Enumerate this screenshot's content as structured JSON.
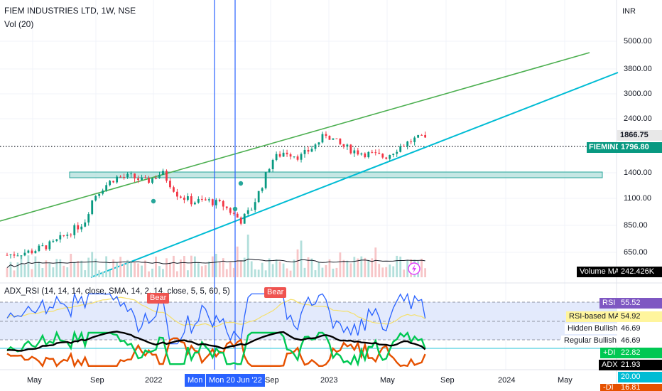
{
  "header": {
    "title": "FIEM INDUSTRIES LTD, 1W, NSE",
    "volume_label": "Vol (20)",
    "indicator_label": "ADX_RSI (14, 14, 14, close, SMA, 14, 2, 14, close, 5, 5, 60, 5)"
  },
  "currency": "INR",
  "price_axis": {
    "ticks": [
      "5000.00",
      "3800.00",
      "3000.00",
      "2400.00",
      "1866.75",
      "1400.00",
      "1100.00",
      "850.00",
      "650.00"
    ]
  },
  "symbol_tag": {
    "name": "FIEMIND",
    "price": "1796.80"
  },
  "indicator_values": {
    "volume_ma_label": "Volume MA",
    "volume_ma": "242.426K",
    "rsi_label": "RSI",
    "rsi": "55.52",
    "rsi_ma_label": "RSI-based MA",
    "rsi_ma": "54.92",
    "hidden_bullish_label": "Hidden Bullish",
    "hidden_bullish": "46.69",
    "regular_bullish_label": "Regular Bullish",
    "regular_bullish": "46.69",
    "plus_di_label": "+DI",
    "plus_di": "22.82",
    "adx_label": "ADX",
    "adx": "21.93",
    "level_20": "20.00",
    "minus_di_label": "-DI",
    "minus_di": "16.81"
  },
  "bear_labels": [
    "Bear",
    "Bear"
  ],
  "time_axis": {
    "ticks": [
      "May",
      "Sep",
      "2022",
      "Sep",
      "2023",
      "May",
      "Sep",
      "2024",
      "May"
    ],
    "highlight_1": "Mon",
    "highlight_2": "Mon 20 Jun '22"
  },
  "colors": {
    "bull": "#089981",
    "bear": "#f23645",
    "upper_trendline": "#4caf50",
    "lower_trendline": "#00bcd4",
    "vertical_lines": "#2962ff",
    "zone": "#b2dfdb",
    "rsi": "#2962ff",
    "adx": "#000000",
    "plus_di": "#00c853",
    "minus_di": "#e65100"
  },
  "chart_data": {
    "type": "candlestick",
    "title": "FIEM INDUSTRIES LTD, 1W, NSE",
    "y_scale": "log",
    "ylim": [
      480,
      6400
    ],
    "x_range": [
      "2021-03",
      "2024-07"
    ],
    "weekly_close_path": [
      {
        "x": "2021-03-15",
        "close": 620
      },
      {
        "x": "2021-05-01",
        "close": 640
      },
      {
        "x": "2021-06-15",
        "close": 690
      },
      {
        "x": "2021-07-15",
        "close": 760
      },
      {
        "x": "2021-08-15",
        "close": 840
      },
      {
        "x": "2021-09-01",
        "close": 1050
      },
      {
        "x": "2021-09-20",
        "close": 1150
      },
      {
        "x": "2021-10-15",
        "close": 1260
      },
      {
        "x": "2021-11-15",
        "close": 1270
      },
      {
        "x": "2021-12-15",
        "close": 1210
      },
      {
        "x": "2022-01-15",
        "close": 1320
      },
      {
        "x": "2022-02-15",
        "close": 1080
      },
      {
        "x": "2022-03-15",
        "close": 1010
      },
      {
        "x": "2022-04-15",
        "close": 1020
      },
      {
        "x": "2022-05-15",
        "close": 980
      },
      {
        "x": "2022-06-20",
        "close": 850
      },
      {
        "x": "2022-07-10",
        "close": 940
      },
      {
        "x": "2022-08-01",
        "close": 1180
      },
      {
        "x": "2022-08-20",
        "close": 1480
      },
      {
        "x": "2022-09-15",
        "close": 1600
      },
      {
        "x": "2022-10-15",
        "close": 1520
      },
      {
        "x": "2022-11-15",
        "close": 1700
      },
      {
        "x": "2022-12-05",
        "close": 1880
      },
      {
        "x": "2023-01-01",
        "close": 1700
      },
      {
        "x": "2023-02-01",
        "close": 1600
      },
      {
        "x": "2023-03-01",
        "close": 1560
      },
      {
        "x": "2023-04-01",
        "close": 1520
      },
      {
        "x": "2023-05-01",
        "close": 1680
      },
      {
        "x": "2023-06-01",
        "close": 1800
      },
      {
        "x": "2023-06-20",
        "close": 1796.8
      }
    ],
    "horizontal_levels": [
      1866.75
    ],
    "zone": {
      "from": 1310,
      "to": 1390,
      "x_start": "2021-03",
      "x_end": "2024-07"
    },
    "trendlines": [
      {
        "name": "upper",
        "from": {
          "x": "2021-03-01",
          "y": 870
        },
        "to": {
          "x": "2024-06-01",
          "y": 4300
        }
      },
      {
        "name": "lower",
        "from": {
          "x": "2021-09-01",
          "y": 560
        },
        "to": {
          "x": "2024-08-01",
          "y": 3300
        }
      }
    ],
    "vertical_markers": [
      "2022-05-23",
      "2022-06-20"
    ],
    "volume_ma_last": 242426,
    "indicator": {
      "rsi_last": 55.52,
      "rsi_ma_last": 54.92,
      "plus_di_last": 22.82,
      "adx_last": 21.93,
      "minus_di_last": 16.81,
      "hidden_bullish": 46.69,
      "regular_bullish": 46.69,
      "levels": [
        60,
        20
      ]
    }
  }
}
